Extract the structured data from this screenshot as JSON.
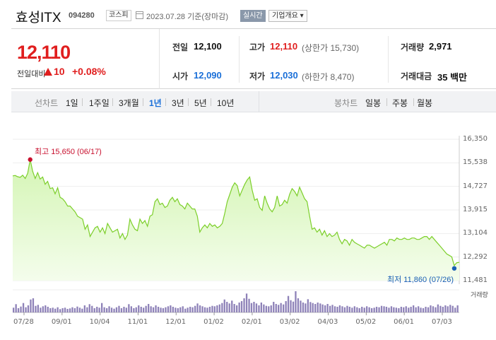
{
  "header": {
    "name": "효성ITX",
    "code": "094280",
    "market": "코스피",
    "date": "2023.07.28  기준(장마감)",
    "realtime": "실시간",
    "company_btn": "기업개요 ▾"
  },
  "price": {
    "current": "12,110",
    "change_label": "전일대비",
    "change": "10",
    "change_pct": "+0.08%",
    "colors": {
      "up": "#e01e1e",
      "down": "#1a6fd8"
    }
  },
  "summary": {
    "prev_close": {
      "label": "전일",
      "value": "12,100"
    },
    "high": {
      "label": "고가",
      "value": "12,110",
      "sub": "(상한가 15,730)"
    },
    "volume": {
      "label": "거래량",
      "value": "2,971"
    },
    "open": {
      "label": "시가",
      "value": "12,090"
    },
    "low": {
      "label": "저가",
      "value": "12,030",
      "sub": "(하한가 8,470)"
    },
    "amount": {
      "label": "거래대금",
      "value": "35 백만"
    }
  },
  "tabs": {
    "line_caption": "선차트",
    "line_periods": [
      "1일",
      "1주일",
      "3개월",
      "1년",
      "3년",
      "5년",
      "10년"
    ],
    "active_period": "1년",
    "candle_caption": "봉차트",
    "candle_periods": [
      "일봉",
      "주봉",
      "월봉"
    ]
  },
  "chart_data": {
    "type": "area",
    "y_ticks": [
      "16,350",
      "15,538",
      "14,727",
      "13,915",
      "13,104",
      "12,292",
      "11,481"
    ],
    "ylim": [
      11481,
      16350
    ],
    "x_ticks": [
      "07/28",
      "09/01",
      "10/04",
      "11/01",
      "12/01",
      "01/02",
      "02/01",
      "03/02",
      "04/03",
      "05/02",
      "06/01",
      "07/03"
    ],
    "high_annotation": "최고 15,650 (06/17)",
    "low_annotation": "최저 11,860 (07/26)",
    "volume_label": "거래량",
    "colors": {
      "line": "#7ccf2a",
      "fill_top": "#d4f5b4",
      "fill_bottom": "#f4fdec",
      "high": "#c8102e",
      "low": "#1a5fb4",
      "volume": "#8e82b8"
    },
    "series": [
      {
        "values": [
          15090,
          15100,
          15060,
          15040,
          15110,
          15000,
          15180,
          15650,
          15250,
          15000,
          15200,
          14980,
          15050,
          14800,
          14900,
          14650,
          14680,
          14470,
          14680,
          14350,
          14300,
          14200,
          14050,
          14050,
          13950,
          13850,
          13700,
          13650,
          13600,
          13250,
          13400,
          13000,
          13150,
          13300,
          13350,
          13150,
          13300,
          13100,
          13450,
          13300,
          13150,
          13200,
          13250,
          12950,
          13100,
          12900,
          13050,
          13600,
          13400,
          13250,
          13200,
          13600,
          13450,
          13550,
          13350,
          13700,
          13750,
          14200,
          14300,
          14100,
          14150,
          14000,
          14050,
          14250,
          14350,
          14200,
          14300,
          14100,
          14050,
          13950,
          14150,
          14050,
          13950,
          13950,
          13700,
          13150,
          13300,
          13400,
          13300,
          13450,
          13350,
          13400,
          13300,
          13350,
          13450,
          13800,
          14200,
          14450,
          14700,
          14850,
          14750,
          14400,
          14600,
          14800,
          14950,
          15050,
          14600,
          14250,
          14300,
          14000,
          13900,
          14400,
          14150,
          13950,
          13850,
          14000,
          14400,
          14050,
          14100,
          14250,
          14150,
          14450,
          14650,
          14550,
          14400,
          14700,
          14500,
          14300,
          14200,
          13700,
          13250,
          13300,
          13150,
          13250,
          13050,
          13200,
          13000,
          13100,
          13000,
          13050,
          13150,
          12900,
          12750,
          12900,
          12850,
          12700,
          12900,
          12800,
          12750,
          12700,
          12650,
          12600,
          12700,
          12700,
          12650,
          12600,
          12650,
          12700,
          12750,
          12800,
          12700,
          12900,
          12900,
          12850,
          12950,
          12900,
          12900,
          12950,
          12900,
          12900,
          12950,
          12950,
          12900,
          12900,
          12950,
          13000,
          13000,
          12900,
          13000,
          12900,
          12800,
          12700,
          12600,
          12500,
          12400,
          12350,
          12300,
          12000,
          12100,
          12110
        ]
      },
      {
        "name": "거래량",
        "values": [
          20,
          35,
          18,
          25,
          40,
          22,
          30,
          55,
          60,
          28,
          32,
          20,
          26,
          30,
          24,
          18,
          20,
          16,
          22,
          14,
          18,
          20,
          15,
          17,
          22,
          18,
          25,
          20,
          16,
          30,
          22,
          35,
          28,
          18,
          24,
          20,
          40,
          22,
          18,
          26,
          20,
          16,
          22,
          28,
          18,
          24,
          20,
          35,
          26,
          18,
          22,
          30,
          24,
          20,
          28,
          36,
          26,
          22,
          30,
          24,
          20,
          18,
          22,
          26,
          30,
          24,
          20,
          18,
          22,
          26,
          16,
          20,
          24,
          22,
          28,
          38,
          30,
          26,
          22,
          20,
          24,
          28,
          26,
          30,
          34,
          40,
          55,
          45,
          38,
          50,
          36,
          30,
          42,
          48,
          60,
          80,
          58,
          40,
          45,
          38,
          30,
          42,
          34,
          28,
          26,
          30,
          45,
          36,
          32,
          40,
          34,
          48,
          70,
          52,
          46,
          90,
          60,
          50,
          42,
          38,
          56,
          44,
          40,
          36,
          42,
          38,
          34,
          30,
          36,
          28,
          32,
          26,
          24,
          30,
          26,
          22,
          28,
          24,
          20,
          26,
          22,
          18,
          24,
          20,
          26,
          22,
          18,
          20,
          24,
          22,
          28,
          26,
          24,
          20,
          26,
          22,
          20,
          18,
          24,
          22,
          26,
          20,
          24,
          30,
          22,
          26,
          20,
          18,
          24,
          22,
          30,
          26,
          22,
          34,
          28,
          24,
          30,
          26,
          32,
          28,
          20,
          30
        ]
      }
    ]
  }
}
